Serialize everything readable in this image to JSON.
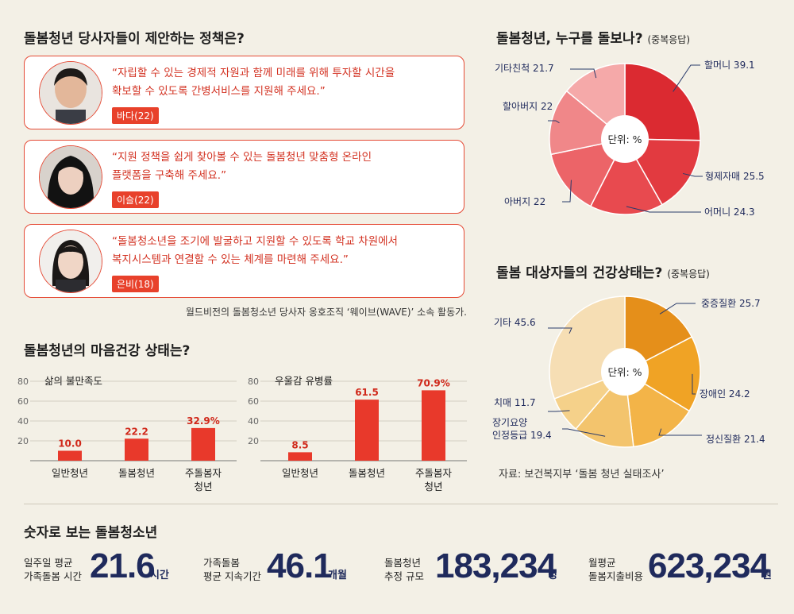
{
  "section1": {
    "title": "돌봄청년 당사자들이 제안하는 정책은?",
    "quotes": [
      {
        "text": "“자립할 수 있는 경제적 자원과 함께 미래를 위해 투자할 시간을\n확보할 수 있도록 간병서비스를 지원해 주세요.”",
        "name": "바다(22)"
      },
      {
        "text": "“지원 정책을 쉽게 찾아볼 수 있는 돌봄청년 맞춤형 온라인\n플랫폼을 구축해 주세요.”",
        "name": "이슬(22)"
      },
      {
        "text": "“돌봄청소년을 조기에 발굴하고 지원할 수 있도록 학교 차원에서\n복지시스템과 연결할 수 있는 체계를 마련해 주세요.”",
        "name": "은비(18)"
      }
    ],
    "caption": "월드비전의 돌봄청소년 당사자 옹호조직 ‘웨이브(WAVE)’ 소속 활동가."
  },
  "section2": {
    "title": "돌봄청년의 마음건강 상태는?"
  },
  "section3": {
    "title": "돌봄청년, 누구를 돌보나?",
    "subtitle": "(중복응답)"
  },
  "section4": {
    "title": "돌봄 대상자들의 건강상태는?",
    "subtitle": "(중복응답)",
    "source": "자료: 보건복지부 ‘돌봄 청년 실태조사’"
  },
  "section5": {
    "title": "숫자로 보는 돌봄청소년",
    "stats": [
      {
        "label": "일주일 평균\n가족돌봄 시간",
        "value": "21.6",
        "unit": "시간"
      },
      {
        "label": "가족돌봄\n평균 지속기간",
        "value": "46.1",
        "unit": "개월"
      },
      {
        "label": "돌봄청년\n추정 규모",
        "value": "183,234",
        "unit": "명"
      },
      {
        "label": "월평균\n돌봄지출비용",
        "value": "623,234",
        "unit": "원"
      }
    ]
  },
  "chart_data": [
    {
      "type": "bar",
      "title": "삶의 불만족도",
      "categories": [
        "일반청년",
        "돌봄청년",
        "주돌봄자\n청년"
      ],
      "values": [
        10.0,
        22.2,
        32.9
      ],
      "value_labels": [
        "10.0",
        "22.2",
        "32.9%"
      ],
      "yticks": [
        20,
        40,
        60,
        80
      ],
      "ylim": [
        0,
        80
      ],
      "color": "#e8392b"
    },
    {
      "type": "bar",
      "title": "우울감 유병률",
      "categories": [
        "일반청년",
        "돌봄청년",
        "주돌봄자\n청년"
      ],
      "values": [
        8.5,
        61.5,
        70.9
      ],
      "value_labels": [
        "8.5",
        "61.5",
        "70.9%"
      ],
      "yticks": [
        20,
        40,
        60,
        80
      ],
      "ylim": [
        0,
        80
      ],
      "color": "#e8392b"
    },
    {
      "type": "pie",
      "center_label": "단위: %",
      "slices": [
        {
          "label": "할머니",
          "value": 39.1,
          "color": "#db2a31"
        },
        {
          "label": "형제자매",
          "value": 25.5,
          "color": "#e23a40"
        },
        {
          "label": "어머니",
          "value": 24.3,
          "color": "#e84a4f"
        },
        {
          "label": "아버지",
          "value": 22.0,
          "color": "#ec6468"
        },
        {
          "label": "할아버지",
          "value": 22.0,
          "color": "#f08789"
        },
        {
          "label": "기타친척",
          "value": 21.7,
          "color": "#f5a9a9"
        }
      ]
    },
    {
      "type": "pie",
      "center_label": "단위: %",
      "slices": [
        {
          "label": "중증질환",
          "value": 25.7,
          "color": "#e58f1a"
        },
        {
          "label": "장애인",
          "value": 24.2,
          "color": "#f0a325"
        },
        {
          "label": "정신질환",
          "value": 21.4,
          "color": "#f3b448"
        },
        {
          "label": "장기요양\n인정등급",
          "value": 19.4,
          "color": "#f3c46d"
        },
        {
          "label": "치매",
          "value": 11.7,
          "color": "#f5d18a"
        },
        {
          "label": "기타",
          "value": 45.6,
          "color": "#f6deb4"
        }
      ]
    }
  ]
}
